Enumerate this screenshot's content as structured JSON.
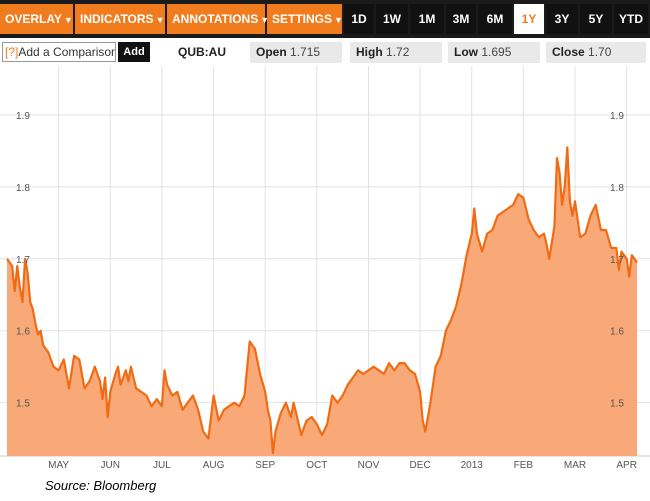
{
  "toolbar": {
    "menus": [
      "OVERLAY",
      "INDICATORS",
      "ANNOTATIONS",
      "SETTINGS"
    ],
    "caret": "▼",
    "ranges": [
      "1D",
      "1W",
      "1M",
      "3M",
      "6M",
      "1Y",
      "3Y",
      "5Y",
      "YTD"
    ],
    "active_range": "1Y"
  },
  "compare": {
    "hint": "[?]",
    "placeholder": "Add a Comparison",
    "add_label": "Add"
  },
  "quote": {
    "ticker": "QUB:AU",
    "open_label": "Open",
    "open_value": "1.715",
    "high_label": "High",
    "high_value": "1.72",
    "low_label": "Low",
    "low_value": "1.695",
    "close_label": "Close",
    "close_value": "1.70"
  },
  "source": "Source: Bloomberg",
  "colors": {
    "accent": "#f07c1e",
    "area": "#f9a878",
    "line": "#ef6c14"
  },
  "chart_data": {
    "type": "area",
    "title": "",
    "xlabel": "",
    "ylabel": "",
    "ylim": [
      1.43,
      1.95
    ],
    "y_ticks": [
      1.9,
      1.8,
      1.7,
      1.6,
      1.5
    ],
    "y_tick_labels": [
      "1.9",
      "1.8",
      "1.7",
      "1.6",
      "1.5"
    ],
    "x_ticks": [
      "MAY",
      "JUN",
      "JUL",
      "AUG",
      "SEP",
      "OCT",
      "NOV",
      "DEC",
      "2013",
      "FEB",
      "MAR",
      "APR"
    ],
    "x_tick_positions": [
      1.0,
      2.0,
      3.0,
      4.0,
      5.0,
      6.0,
      7.0,
      8.0,
      9.0,
      10.0,
      11.0,
      12.0
    ],
    "grid": true,
    "series": [
      {
        "values": [
          [
            0.0,
            1.7
          ],
          [
            0.05,
            1.695
          ],
          [
            0.1,
            1.69
          ],
          [
            0.15,
            1.655
          ],
          [
            0.2,
            1.69
          ],
          [
            0.25,
            1.66
          ],
          [
            0.3,
            1.64
          ],
          [
            0.35,
            1.7
          ],
          [
            0.4,
            1.68
          ],
          [
            0.45,
            1.64
          ],
          [
            0.5,
            1.63
          ],
          [
            0.55,
            1.61
          ],
          [
            0.6,
            1.595
          ],
          [
            0.65,
            1.6
          ],
          [
            0.7,
            1.58
          ],
          [
            0.8,
            1.57
          ],
          [
            0.9,
            1.55
          ],
          [
            1.0,
            1.545
          ],
          [
            1.1,
            1.56
          ],
          [
            1.2,
            1.52
          ],
          [
            1.3,
            1.565
          ],
          [
            1.4,
            1.56
          ],
          [
            1.5,
            1.52
          ],
          [
            1.6,
            1.53
          ],
          [
            1.7,
            1.55
          ],
          [
            1.8,
            1.53
          ],
          [
            1.85,
            1.505
          ],
          [
            1.9,
            1.535
          ],
          [
            1.95,
            1.48
          ],
          [
            2.0,
            1.515
          ],
          [
            2.1,
            1.54
          ],
          [
            2.15,
            1.55
          ],
          [
            2.2,
            1.525
          ],
          [
            2.3,
            1.545
          ],
          [
            2.35,
            1.53
          ],
          [
            2.4,
            1.55
          ],
          [
            2.5,
            1.52
          ],
          [
            2.6,
            1.515
          ],
          [
            2.7,
            1.51
          ],
          [
            2.8,
            1.495
          ],
          [
            2.9,
            1.505
          ],
          [
            3.0,
            1.495
          ],
          [
            3.05,
            1.545
          ],
          [
            3.1,
            1.525
          ],
          [
            3.2,
            1.51
          ],
          [
            3.3,
            1.515
          ],
          [
            3.4,
            1.49
          ],
          [
            3.5,
            1.5
          ],
          [
            3.6,
            1.51
          ],
          [
            3.7,
            1.49
          ],
          [
            3.8,
            1.46
          ],
          [
            3.9,
            1.45
          ],
          [
            4.0,
            1.51
          ],
          [
            4.1,
            1.475
          ],
          [
            4.2,
            1.49
          ],
          [
            4.3,
            1.495
          ],
          [
            4.4,
            1.5
          ],
          [
            4.5,
            1.495
          ],
          [
            4.6,
            1.51
          ],
          [
            4.7,
            1.585
          ],
          [
            4.8,
            1.575
          ],
          [
            4.9,
            1.54
          ],
          [
            5.0,
            1.515
          ],
          [
            5.05,
            1.49
          ],
          [
            5.1,
            1.475
          ],
          [
            5.15,
            1.43
          ],
          [
            5.2,
            1.46
          ],
          [
            5.3,
            1.485
          ],
          [
            5.4,
            1.5
          ],
          [
            5.5,
            1.48
          ],
          [
            5.55,
            1.5
          ],
          [
            5.6,
            1.485
          ],
          [
            5.7,
            1.455
          ],
          [
            5.75,
            1.465
          ],
          [
            5.8,
            1.475
          ],
          [
            5.9,
            1.48
          ],
          [
            6.0,
            1.47
          ],
          [
            6.1,
            1.455
          ],
          [
            6.2,
            1.47
          ],
          [
            6.3,
            1.51
          ],
          [
            6.4,
            1.5
          ],
          [
            6.5,
            1.51
          ],
          [
            6.6,
            1.525
          ],
          [
            6.7,
            1.535
          ],
          [
            6.8,
            1.545
          ],
          [
            6.9,
            1.54
          ],
          [
            7.0,
            1.545
          ],
          [
            7.1,
            1.55
          ],
          [
            7.2,
            1.545
          ],
          [
            7.3,
            1.54
          ],
          [
            7.4,
            1.555
          ],
          [
            7.5,
            1.545
          ],
          [
            7.6,
            1.555
          ],
          [
            7.7,
            1.555
          ],
          [
            7.8,
            1.545
          ],
          [
            7.9,
            1.54
          ],
          [
            8.0,
            1.515
          ],
          [
            8.05,
            1.475
          ],
          [
            8.1,
            1.46
          ],
          [
            8.15,
            1.48
          ],
          [
            8.2,
            1.5
          ],
          [
            8.3,
            1.55
          ],
          [
            8.4,
            1.565
          ],
          [
            8.5,
            1.6
          ],
          [
            8.6,
            1.615
          ],
          [
            8.7,
            1.635
          ],
          [
            8.8,
            1.665
          ],
          [
            8.9,
            1.705
          ],
          [
            9.0,
            1.735
          ],
          [
            9.05,
            1.77
          ],
          [
            9.1,
            1.735
          ],
          [
            9.2,
            1.71
          ],
          [
            9.3,
            1.735
          ],
          [
            9.4,
            1.74
          ],
          [
            9.5,
            1.76
          ],
          [
            9.6,
            1.765
          ],
          [
            9.7,
            1.77
          ],
          [
            9.8,
            1.775
          ],
          [
            9.9,
            1.79
          ],
          [
            10.0,
            1.785
          ],
          [
            10.1,
            1.755
          ],
          [
            10.2,
            1.74
          ],
          [
            10.3,
            1.73
          ],
          [
            10.4,
            1.735
          ],
          [
            10.45,
            1.72
          ],
          [
            10.5,
            1.7
          ],
          [
            10.6,
            1.745
          ],
          [
            10.65,
            1.84
          ],
          [
            10.7,
            1.82
          ],
          [
            10.75,
            1.775
          ],
          [
            10.8,
            1.8
          ],
          [
            10.85,
            1.855
          ],
          [
            10.9,
            1.78
          ],
          [
            10.95,
            1.76
          ],
          [
            11.0,
            1.78
          ],
          [
            11.05,
            1.755
          ],
          [
            11.1,
            1.73
          ],
          [
            11.2,
            1.735
          ],
          [
            11.3,
            1.76
          ],
          [
            11.4,
            1.775
          ],
          [
            11.5,
            1.74
          ],
          [
            11.6,
            1.74
          ],
          [
            11.7,
            1.715
          ],
          [
            11.8,
            1.715
          ],
          [
            11.85,
            1.685
          ],
          [
            11.9,
            1.71
          ],
          [
            12.0,
            1.7
          ],
          [
            12.05,
            1.675
          ],
          [
            12.1,
            1.705
          ],
          [
            12.2,
            1.695
          ]
        ]
      }
    ]
  }
}
